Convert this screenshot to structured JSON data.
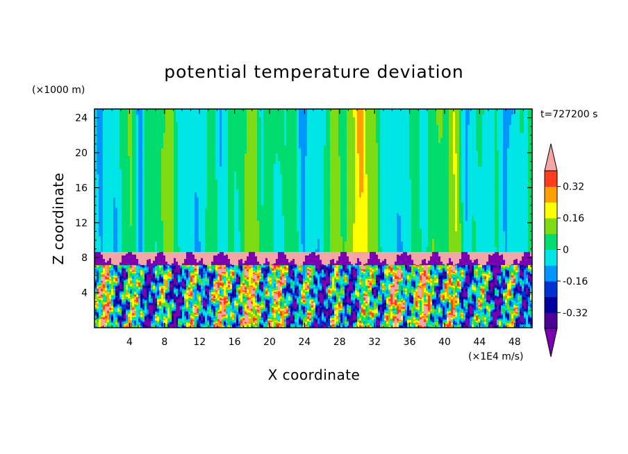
{
  "chart_data": {
    "type": "heatmap",
    "title": "potential temperature deviation",
    "xlabel": "X coordinate",
    "ylabel": "Z coordinate",
    "x_unit": "(×1E4 m/s)",
    "y_unit": "(×1000 m)",
    "time_label": "t=727200 s",
    "xlim": [
      0,
      50
    ],
    "ylim": [
      0,
      25
    ],
    "x_ticks": [
      4,
      8,
      12,
      16,
      20,
      24,
      28,
      32,
      36,
      40,
      44,
      48
    ],
    "y_ticks": [
      4,
      8,
      12,
      16,
      20,
      24
    ],
    "colorbar": {
      "extend": "both",
      "levels": [
        -0.4,
        -0.32,
        -0.24,
        -0.16,
        -0.08,
        0,
        0.08,
        0.16,
        0.24,
        0.32,
        0.4
      ],
      "colors": [
        "#4b0096",
        "#00009c",
        "#0032d2",
        "#0096ff",
        "#00e6e6",
        "#00dd6e",
        "#7ddc14",
        "#ffff00",
        "#ffa000",
        "#ff3c1e"
      ],
      "under_color": "#7a00b0",
      "over_color": "#f4a6a6",
      "labels": [
        "0.32",
        "0.16",
        "0",
        "-0.16",
        "-0.32"
      ],
      "label_values": [
        0.32,
        0.16,
        0,
        -0.16,
        -0.32
      ]
    }
  }
}
